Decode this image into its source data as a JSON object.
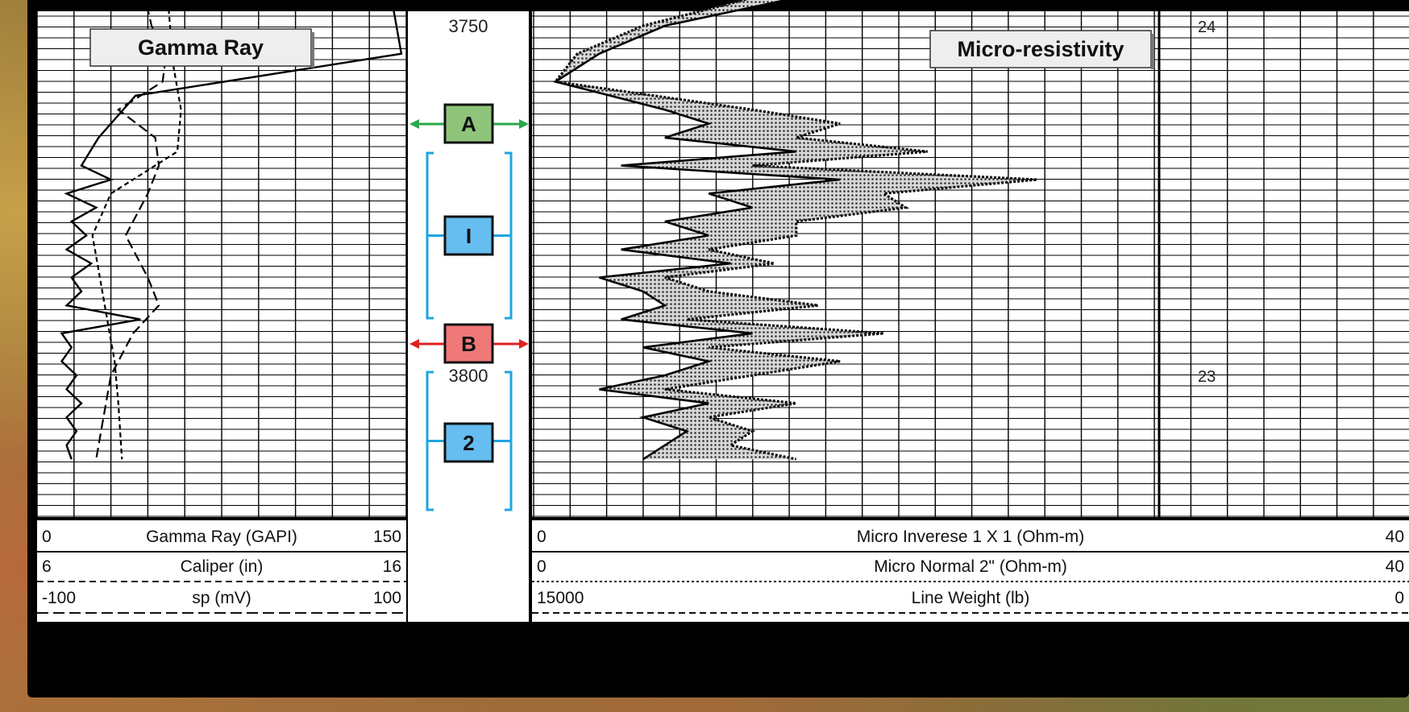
{
  "chart_data": {
    "type": "line",
    "depth_ticks": [
      {
        "depth": 3750,
        "label": "3750"
      },
      {
        "depth": 3800,
        "label": "3800"
      }
    ],
    "panels": [
      {
        "name": "gamma-ray-track",
        "title": "Gamma Ray"
      },
      {
        "name": "micro-resistivity-track",
        "title": "Micro-resistivity"
      }
    ],
    "markers": [
      {
        "letter": "A",
        "kind": "boundary",
        "color": "#8fc47a",
        "arrow": "#2aa84a"
      },
      {
        "letter": "I",
        "kind": "zone",
        "color": "#66bdf0",
        "bracket": "#1ea6e0"
      },
      {
        "letter": "B",
        "kind": "boundary",
        "color": "#f07878",
        "arrow": "#e02020"
      },
      {
        "letter": "2",
        "kind": "zone",
        "color": "#66bdf0",
        "bracket": "#1ea6e0"
      }
    ],
    "right_axis_labels": [
      "24",
      "23"
    ],
    "scales_left": [
      {
        "min": "0",
        "label": "Gamma Ray (GAPI)",
        "max": "150",
        "line": "solid"
      },
      {
        "min": "6",
        "label": "Caliper (in)",
        "max": "16",
        "line": "dashed"
      },
      {
        "min": "-100",
        "label": "sp (mV)",
        "max": "100",
        "line": "long-dash"
      }
    ],
    "scales_right": [
      {
        "min": "0",
        "label": "Micro Inverese 1 X 1 (Ohm-m)",
        "max": "40",
        "line": "solid"
      },
      {
        "min": "0",
        "label": "Micro Normal 2\" (Ohm-m)",
        "max": "40",
        "line": "dotted"
      },
      {
        "min": "15000",
        "label": "Line Weight (lb)",
        "max": "0",
        "line": "dashed"
      }
    ],
    "curves": {
      "gamma_ray": {
        "name": "Gamma Ray (GAPI)",
        "depth": [
          3743,
          3748,
          3754,
          3760,
          3766,
          3770,
          3772,
          3774,
          3776,
          3778,
          3780,
          3782,
          3784,
          3786,
          3788,
          3790,
          3792,
          3794,
          3796,
          3798,
          3800,
          3802,
          3804,
          3806,
          3808,
          3810,
          3812
        ],
        "value": [
          140,
          145,
          148,
          40,
          25,
          18,
          30,
          12,
          24,
          14,
          20,
          12,
          22,
          14,
          18,
          12,
          42,
          10,
          14,
          10,
          16,
          12,
          18,
          12,
          16,
          12,
          14
        ]
      },
      "caliper": {
        "name": "Caliper (in)",
        "depth": [
          3743,
          3750,
          3754,
          3758,
          3762,
          3766,
          3770,
          3774,
          3780,
          3786,
          3790,
          3794,
          3800,
          3806,
          3812
        ],
        "value": [
          8.8,
          9.1,
          9.5,
          9.4,
          8.2,
          9.2,
          9.3,
          9.0,
          8.4,
          9.0,
          9.3,
          8.6,
          8.0,
          7.8,
          7.6
        ]
      },
      "sp": {
        "name": "sp (mV)",
        "depth": [
          3743,
          3750,
          3756,
          3762,
          3768,
          3774,
          3780,
          3786,
          3792,
          3798,
          3804,
          3812
        ],
        "value": [
          -30,
          -28,
          -26,
          -22,
          -24,
          -60,
          -70,
          -66,
          -62,
          -58,
          -56,
          -54
        ]
      },
      "micro_inverse": {
        "name": "Micro Inverese 1 X 1 (Ohm-m)",
        "depth": [
          3743,
          3746,
          3750,
          3754,
          3758,
          3762,
          3764,
          3766,
          3768,
          3770,
          3772,
          3774,
          3776,
          3778,
          3780,
          3782,
          3784,
          3786,
          3788,
          3790,
          3792,
          3794,
          3796,
          3798,
          3800,
          3802,
          3804,
          3806,
          3808,
          3810,
          3812
        ],
        "value": [
          2,
          12,
          6,
          3,
          1,
          6,
          8,
          6,
          12,
          4,
          14,
          8,
          10,
          6,
          8,
          4,
          9,
          3,
          5,
          6,
          4,
          10,
          5,
          8,
          6,
          3,
          8,
          5,
          7,
          6,
          5
        ]
      },
      "micro_normal": {
        "name": "Micro Normal 2\" (Ohm-m)",
        "depth": [
          3743,
          3746,
          3750,
          3754,
          3758,
          3762,
          3764,
          3766,
          3768,
          3770,
          3772,
          3774,
          3776,
          3778,
          3780,
          3782,
          3784,
          3786,
          3788,
          3790,
          3792,
          3794,
          3796,
          3798,
          3800,
          3802,
          3804,
          3806,
          3808,
          3810,
          3812
        ],
        "value": [
          3,
          10,
          5,
          2,
          1,
          10,
          14,
          12,
          18,
          10,
          23,
          16,
          17,
          12,
          12,
          8,
          11,
          6,
          8,
          13,
          7,
          16,
          8,
          14,
          10,
          6,
          12,
          8,
          10,
          9,
          12
        ]
      }
    }
  }
}
